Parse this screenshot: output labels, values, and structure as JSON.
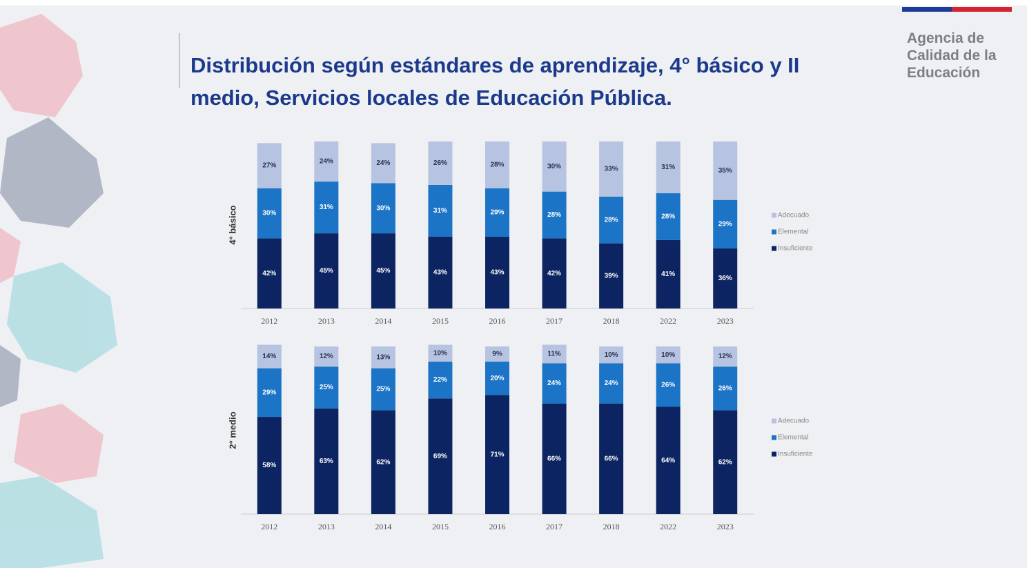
{
  "title_lines": [
    "Distribución según estándares de aprendizaje, 4° básico y II",
    "medio, Servicios locales de Educación Pública."
  ],
  "logo_lines": [
    "Agencia de",
    "Calidad de la",
    "Educación"
  ],
  "chart_data": [
    {
      "type": "bar",
      "stacked": true,
      "y_label": "4° básico",
      "categories": [
        "2012",
        "2013",
        "2014",
        "2015",
        "2016",
        "2017",
        "2018",
        "2022",
        "2023"
      ],
      "ylim": [
        0,
        100
      ],
      "series": [
        {
          "name": "Insuficiente",
          "color": "#0c2461",
          "values": [
            42,
            45,
            45,
            43,
            43,
            42,
            39,
            41,
            36
          ],
          "value_labels": [
            "42%",
            "45%",
            "45%",
            "43%",
            "43%",
            "42%",
            "39%",
            "41%",
            "36%"
          ]
        },
        {
          "name": "Elemental",
          "color": "#1b74c5",
          "values": [
            30,
            31,
            30,
            31,
            29,
            28,
            28,
            28,
            29
          ],
          "value_labels": [
            "30%",
            "31%",
            "30%",
            "31%",
            "29%",
            "28%",
            "28%",
            "28%",
            "29%"
          ]
        },
        {
          "name": "Adecuado",
          "color": "#b7c4e1",
          "values": [
            27,
            24,
            24,
            26,
            28,
            30,
            33,
            31,
            35
          ],
          "value_labels": [
            "27%",
            "24%",
            "24%",
            "26%",
            "28%",
            "30%",
            "33%",
            "31%",
            "35%"
          ]
        }
      ]
    },
    {
      "type": "bar",
      "stacked": true,
      "y_label": "2° medio",
      "categories": [
        "2012",
        "2013",
        "2014",
        "2015",
        "2016",
        "2017",
        "2018",
        "2022",
        "2023"
      ],
      "ylim": [
        0,
        100
      ],
      "series": [
        {
          "name": "Insuficiente",
          "color": "#0c2461",
          "values": [
            58,
            63,
            62,
            69,
            71,
            66,
            66,
            64,
            62
          ],
          "value_labels": [
            "58%",
            "63%",
            "62%",
            "69%",
            "71%",
            "66%",
            "66%",
            "64%",
            "62%"
          ]
        },
        {
          "name": "Elemental",
          "color": "#1b74c5",
          "values": [
            29,
            25,
            25,
            22,
            20,
            24,
            24,
            26,
            26
          ],
          "value_labels": [
            "29%",
            "25%",
            "25%",
            "22%",
            "20%",
            "24%",
            "24%",
            "26%",
            "26%"
          ]
        },
        {
          "name": "Adecuado",
          "color": "#b7c4e1",
          "values": [
            14,
            12,
            13,
            10,
            9,
            11,
            10,
            10,
            12
          ],
          "value_labels": [
            "14%",
            "12%",
            "13%",
            "10%",
            "9%",
            "11%",
            "10%",
            "10%",
            "12%"
          ]
        }
      ]
    }
  ]
}
